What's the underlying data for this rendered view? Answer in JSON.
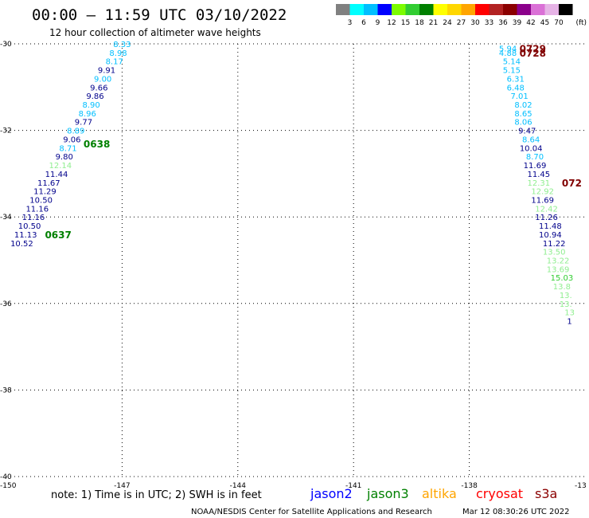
{
  "header": {
    "title": "00:00 – 11:59 UTC 03/10/2022",
    "subtitle": "12 hour collection of altimeter wave heights"
  },
  "colors": {
    "c3": "#1e90ff",
    "c5": "#00bfff",
    "c6": "#00008b",
    "c7": "#90ee90",
    "c8": "#32cd32",
    "c9": "#008000",
    "c10": "#800000",
    "text": "#000000"
  },
  "legend_scale": {
    "labels": [
      "3",
      "6",
      "9",
      "12",
      "15",
      "18",
      "21",
      "24",
      "27",
      "30",
      "33",
      "36",
      "39",
      "42",
      "45",
      "70"
    ],
    "unit": "(ft)",
    "colors": [
      "#808080",
      "#00ffff",
      "#00bfff",
      "#0000ff",
      "#7cfc00",
      "#32cd32",
      "#008000",
      "#ffff00",
      "#ffd700",
      "#ffa500",
      "#ff0000",
      "#b22222",
      "#8b0000",
      "#8b008b",
      "#da70d6",
      "#e6b3e6",
      "#000000"
    ]
  },
  "footer": {
    "note": "note: 1) Time is in UTC; 2) SWH is in feet",
    "satellites": [
      {
        "name": "jason2",
        "color": "#0000ff"
      },
      {
        "name": "jason3",
        "color": "#008000"
      },
      {
        "name": "altika",
        "color": "#ffa500"
      },
      {
        "name": "cryosat",
        "color": "#ff0000"
      },
      {
        "name": "s3a",
        "color": "#8b0000"
      }
    ],
    "credit": "NOAA/NESDIS Center for Satellite Applications and Research",
    "timestamp": "Mar 12 08:30:26 UTC 2022"
  },
  "chart_data": {
    "type": "scatter",
    "title": "00:00 – 11:59 UTC 03/10/2022",
    "subtitle": "12 hour collection of altimeter wave heights",
    "xlim": [
      -150,
      -135
    ],
    "ylim": [
      -40,
      -30
    ],
    "x_ticks": [
      -147,
      -144,
      -141,
      -138
    ],
    "x_tick_labels": [
      "-147",
      "-144",
      "-141",
      "-138"
    ],
    "x_edge_labels": [
      "-150",
      "-13"
    ],
    "y_ticks": [
      -30,
      -32,
      -34,
      -36,
      -38,
      -40
    ],
    "y_tick_labels": [
      "-30",
      "-32",
      "-34",
      "-36",
      "-38",
      "-40"
    ],
    "grid": true,
    "series": [
      {
        "points": [
          {
            "lon": -147.0,
            "lat": -30.0,
            "v": "8.33",
            "c": "#00bfff"
          },
          {
            "lon": -147.1,
            "lat": -30.2,
            "v": "8.98",
            "c": "#00bfff"
          },
          {
            "lon": -147.2,
            "lat": -30.4,
            "v": "8.17",
            "c": "#00bfff"
          },
          {
            "lon": -147.4,
            "lat": -30.6,
            "v": "9.91",
            "c": "#00008b"
          },
          {
            "lon": -147.5,
            "lat": -30.8,
            "v": "9.00",
            "c": "#00bfff"
          },
          {
            "lon": -147.6,
            "lat": -31.0,
            "v": "9.66",
            "c": "#00008b"
          },
          {
            "lon": -147.7,
            "lat": -31.2,
            "v": "9.86",
            "c": "#00008b"
          },
          {
            "lon": -147.8,
            "lat": -31.4,
            "v": "8.90",
            "c": "#00bfff"
          },
          {
            "lon": -147.9,
            "lat": -31.6,
            "v": "8.96",
            "c": "#00bfff"
          },
          {
            "lon": -148.0,
            "lat": -31.8,
            "v": "9.77",
            "c": "#00008b"
          },
          {
            "lon": -148.2,
            "lat": -32.0,
            "v": "8.89",
            "c": "#00bfff"
          },
          {
            "lon": -148.3,
            "lat": -32.2,
            "v": "9.06",
            "c": "#00008b"
          },
          {
            "lon": -148.4,
            "lat": -32.4,
            "v": "8.71",
            "c": "#00bfff"
          },
          {
            "lon": -148.5,
            "lat": -32.6,
            "v": "9.80",
            "c": "#00008b"
          },
          {
            "lon": -148.6,
            "lat": -32.8,
            "v": "12.14",
            "c": "#90ee90"
          },
          {
            "lon": -148.7,
            "lat": -33.0,
            "v": "11.44",
            "c": "#00008b"
          },
          {
            "lon": -148.9,
            "lat": -33.2,
            "v": "11.67",
            "c": "#00008b"
          },
          {
            "lon": -149.0,
            "lat": -33.4,
            "v": "11.29",
            "c": "#00008b"
          },
          {
            "lon": -149.1,
            "lat": -33.6,
            "v": "10.50",
            "c": "#00008b"
          },
          {
            "lon": -149.2,
            "lat": -33.8,
            "v": "11.16",
            "c": "#00008b"
          },
          {
            "lon": -149.3,
            "lat": -34.0,
            "v": "11.16",
            "c": "#00008b"
          },
          {
            "lon": -149.4,
            "lat": -34.2,
            "v": "10.50",
            "c": "#00008b"
          },
          {
            "lon": -149.5,
            "lat": -34.4,
            "v": "11.13",
            "c": "#00008b"
          },
          {
            "lon": -149.6,
            "lat": -34.6,
            "v": "10.52",
            "c": "#00008b"
          }
        ]
      },
      {
        "points": [
          {
            "lon": -137.0,
            "lat": -30.1,
            "v": "5.94",
            "c": "#00bfff"
          },
          {
            "lon": -137.0,
            "lat": -30.2,
            "v": "4.88",
            "c": "#00bfff"
          },
          {
            "lon": -136.9,
            "lat": -30.4,
            "v": "5.14",
            "c": "#00bfff"
          },
          {
            "lon": -136.9,
            "lat": -30.6,
            "v": "5.15",
            "c": "#00bfff"
          },
          {
            "lon": -136.8,
            "lat": -30.8,
            "v": "6.31",
            "c": "#00bfff"
          },
          {
            "lon": -136.8,
            "lat": -31.0,
            "v": "6.48",
            "c": "#00bfff"
          },
          {
            "lon": -136.7,
            "lat": -31.2,
            "v": "7.01",
            "c": "#00bfff"
          },
          {
            "lon": -136.6,
            "lat": -31.4,
            "v": "8.02",
            "c": "#00bfff"
          },
          {
            "lon": -136.6,
            "lat": -31.6,
            "v": "8.65",
            "c": "#00bfff"
          },
          {
            "lon": -136.6,
            "lat": -31.8,
            "v": "8.06",
            "c": "#00bfff"
          },
          {
            "lon": -136.5,
            "lat": -32.0,
            "v": "9.47",
            "c": "#00008b"
          },
          {
            "lon": -136.4,
            "lat": -32.2,
            "v": "8.64",
            "c": "#00bfff"
          },
          {
            "lon": -136.4,
            "lat": -32.4,
            "v": "10.04",
            "c": "#00008b"
          },
          {
            "lon": -136.3,
            "lat": -32.6,
            "v": "8.70",
            "c": "#00bfff"
          },
          {
            "lon": -136.3,
            "lat": -32.8,
            "v": "11.69",
            "c": "#00008b"
          },
          {
            "lon": -136.2,
            "lat": -33.0,
            "v": "11.45",
            "c": "#00008b"
          },
          {
            "lon": -136.2,
            "lat": -33.2,
            "v": "12.31",
            "c": "#90ee90"
          },
          {
            "lon": -136.1,
            "lat": -33.4,
            "v": "12.92",
            "c": "#90ee90"
          },
          {
            "lon": -136.1,
            "lat": -33.6,
            "v": "11.69",
            "c": "#00008b"
          },
          {
            "lon": -136.0,
            "lat": -33.8,
            "v": "12.42",
            "c": "#90ee90"
          },
          {
            "lon": -136.0,
            "lat": -34.0,
            "v": "11.26",
            "c": "#00008b"
          },
          {
            "lon": -135.9,
            "lat": -34.2,
            "v": "11.48",
            "c": "#00008b"
          },
          {
            "lon": -135.9,
            "lat": -34.4,
            "v": "10.94",
            "c": "#00008b"
          },
          {
            "lon": -135.8,
            "lat": -34.6,
            "v": "11.22",
            "c": "#00008b"
          },
          {
            "lon": -135.8,
            "lat": -34.8,
            "v": "13.50",
            "c": "#90ee90"
          },
          {
            "lon": -135.7,
            "lat": -35.0,
            "v": "13.22",
            "c": "#90ee90"
          },
          {
            "lon": -135.7,
            "lat": -35.2,
            "v": "13.69",
            "c": "#90ee90"
          },
          {
            "lon": -135.6,
            "lat": -35.4,
            "v": "15.03",
            "c": "#32cd32"
          },
          {
            "lon": -135.6,
            "lat": -35.6,
            "v": "13.8",
            "c": "#90ee90"
          },
          {
            "lon": -135.5,
            "lat": -35.8,
            "v": "13.",
            "c": "#90ee90"
          },
          {
            "lon": -135.5,
            "lat": -36.0,
            "v": "13.",
            "c": "#90ee90"
          },
          {
            "lon": -135.4,
            "lat": -36.2,
            "v": "13",
            "c": "#90ee90"
          },
          {
            "lon": -135.4,
            "lat": -36.4,
            "v": "1",
            "c": "#00008b"
          }
        ]
      }
    ],
    "time_annotations": [
      {
        "text": "0638",
        "lon": -148.0,
        "lat": -32.3,
        "color": "#008000"
      },
      {
        "text": "0637",
        "lon": -149.0,
        "lat": -34.4,
        "color": "#008000"
      },
      {
        "text": "0729",
        "lon": -136.7,
        "lat": -30.1,
        "color": "#800000"
      },
      {
        "text": "0728",
        "lon": -136.7,
        "lat": -30.2,
        "color": "#800000"
      },
      {
        "text": "072",
        "lon": -135.6,
        "lat": -33.2,
        "color": "#800000"
      }
    ]
  }
}
